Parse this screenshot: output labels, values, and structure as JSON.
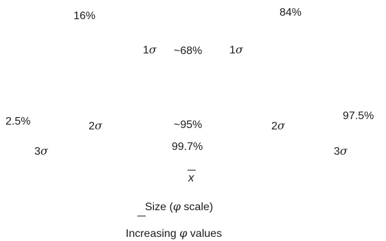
{
  "labels": {
    "pct_16": "16%",
    "pct_84": "84%",
    "pct_68": "~68%",
    "pct_95": "~95%",
    "pct_99_7": "99.7%",
    "pct_2_5": "2.5%",
    "pct_97_5": "97.5%",
    "sigma_1": "1",
    "sigma_2": "2",
    "sigma_3": "3",
    "sigma_symbol": "σ",
    "mean_symbol": "x",
    "size_axis_pre": "Size (",
    "size_axis_post": " scale)",
    "phi_symbol": "φ",
    "increasing_pre": "Increasing ",
    "increasing_post": " values"
  }
}
